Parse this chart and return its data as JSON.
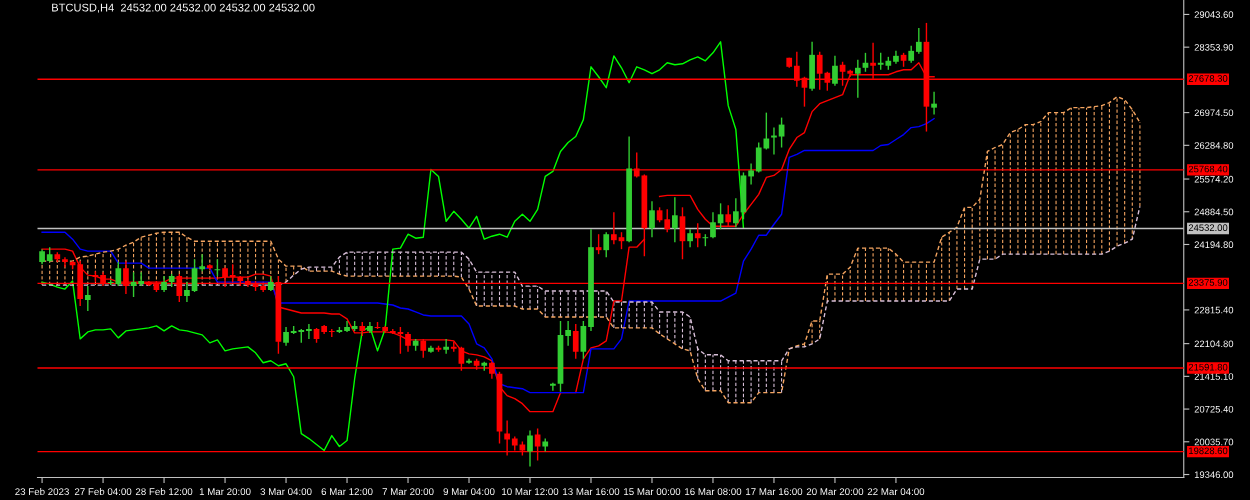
{
  "chart_data": {
    "type": "candlestick",
    "title": "BTCUSD,H4  24532.00 24532.00 24532.00 24532.00",
    "categories": [
      "23 Feb 2023",
      null,
      null,
      null,
      null,
      null,
      null,
      null,
      "27 Feb 04:00",
      null,
      null,
      null,
      null,
      null,
      null,
      null,
      "28 Feb 12:00",
      null,
      null,
      null,
      null,
      null,
      null,
      null,
      "1 Mar 20:00",
      null,
      null,
      null,
      null,
      null,
      null,
      null,
      "3 Mar 04:00",
      null,
      null,
      null,
      null,
      null,
      null,
      null,
      "6 Mar 12:00",
      null,
      null,
      null,
      null,
      null,
      null,
      null,
      "7 Mar 20:00",
      null,
      null,
      null,
      null,
      null,
      null,
      null,
      "9 Mar 04:00",
      null,
      null,
      null,
      null,
      null,
      null,
      null,
      "10 Mar 12:00",
      null,
      null,
      null,
      null,
      null,
      null,
      null,
      "13 Mar 16:00",
      null,
      null,
      null,
      null,
      null,
      null,
      null,
      "15 Mar 00:00",
      null,
      null,
      null,
      null,
      null,
      null,
      null,
      "16 Mar 08:00",
      null,
      null,
      null,
      null,
      null,
      null,
      null,
      "17 Mar 16:00",
      null,
      null,
      null,
      null,
      null,
      null,
      null,
      "20 Mar 20:00",
      null,
      null,
      null,
      null,
      null,
      null,
      null,
      "22 Mar 04:00",
      null,
      null,
      null,
      null,
      null,
      null,
      null,
      null,
      null,
      null,
      null,
      null,
      null,
      null,
      null,
      null,
      null,
      null,
      null,
      null,
      null,
      null,
      null,
      null,
      null,
      null,
      null,
      null,
      null,
      null,
      null,
      null
    ],
    "ohlc": [
      [
        23823,
        24096,
        23780,
        24054
      ],
      [
        23844,
        24138,
        23823,
        23991
      ],
      [
        23991,
        24033,
        23823,
        23886
      ],
      [
        23886,
        23928,
        23717,
        23823
      ],
      [
        23823,
        23844,
        23675,
        23759
      ],
      [
        23780,
        23844,
        22898,
        23045
      ],
      [
        23024,
        23318,
        22793,
        23129
      ],
      [
        23549,
        23633,
        23402,
        23507
      ],
      [
        23549,
        23612,
        23318,
        23360
      ],
      [
        23381,
        23444,
        23339,
        23402
      ],
      [
        23360,
        23823,
        23318,
        23696
      ],
      [
        23696,
        23844,
        23150,
        23318
      ],
      [
        23318,
        23612,
        23087,
        23402
      ],
      [
        23360,
        23612,
        23318,
        23423
      ],
      [
        23402,
        23423,
        23318,
        23339
      ],
      [
        23381,
        23423,
        23192,
        23234
      ],
      [
        23234,
        23528,
        23192,
        23402
      ],
      [
        23402,
        23570,
        23297,
        23528
      ],
      [
        23528,
        23570,
        22982,
        23108
      ],
      [
        23108,
        23402,
        22982,
        23234
      ],
      [
        23213,
        23886,
        23192,
        23696
      ],
      [
        23675,
        23991,
        23633,
        23738
      ],
      [
        23759,
        23780,
        23654,
        23696
      ],
      [
        23654,
        23886,
        23528,
        23675
      ],
      [
        23696,
        23717,
        23297,
        23507
      ],
      [
        23549,
        23780,
        23402,
        23507
      ],
      [
        23507,
        23528,
        23318,
        23423
      ],
      [
        23423,
        23465,
        23297,
        23339
      ],
      [
        23381,
        23423,
        23213,
        23297
      ],
      [
        23318,
        23360,
        23192,
        23234
      ],
      [
        23234,
        23528,
        23213,
        23402
      ],
      [
        23402,
        23528,
        21890,
        22142
      ],
      [
        22121,
        22457,
        22058,
        22352
      ],
      [
        22331,
        22478,
        22310,
        22373
      ],
      [
        22352,
        22415,
        22121,
        22394
      ],
      [
        22373,
        22520,
        22205,
        22415
      ],
      [
        22415,
        22436,
        22121,
        22205
      ],
      [
        22478,
        22499,
        22310,
        22352
      ],
      [
        22373,
        22415,
        22247,
        22352
      ],
      [
        22352,
        22457,
        22331,
        22394
      ],
      [
        22373,
        22583,
        22352,
        22457
      ],
      [
        22415,
        22583,
        22373,
        22478
      ],
      [
        22478,
        22562,
        22268,
        22373
      ],
      [
        22373,
        22562,
        22331,
        22478
      ],
      [
        22457,
        22562,
        22415,
        22436
      ],
      [
        22457,
        22478,
        22331,
        22373
      ],
      [
        22373,
        22415,
        22310,
        22331
      ],
      [
        22352,
        22457,
        21890,
        22310
      ],
      [
        22310,
        22352,
        21932,
        22058
      ],
      [
        22058,
        22205,
        21953,
        22163
      ],
      [
        22163,
        22205,
        21806,
        21953
      ],
      [
        21932,
        22058,
        21911,
        22016
      ],
      [
        22016,
        22058,
        21932,
        21974
      ],
      [
        21974,
        22205,
        21890,
        22037
      ],
      [
        22037,
        22142,
        21932,
        21995
      ],
      [
        22016,
        22037,
        21533,
        21680
      ],
      [
        21701,
        21785,
        21680,
        21743
      ],
      [
        21743,
        21785,
        21554,
        21638
      ],
      [
        21638,
        21722,
        21533,
        21701
      ],
      [
        21701,
        21722,
        21365,
        21470
      ],
      [
        21470,
        21512,
        19999,
        20251
      ],
      [
        20209,
        20482,
        19747,
        20083
      ],
      [
        20104,
        20146,
        19852,
        19957
      ],
      [
        19978,
        20041,
        19747,
        19852
      ],
      [
        19831,
        20272,
        19515,
        20167
      ],
      [
        20188,
        20314,
        19641,
        19936
      ],
      [
        19936,
        20104,
        19831,
        20041
      ],
      [
        21218,
        21280,
        21113,
        21259
      ],
      [
        21259,
        22583,
        21092,
        22289
      ],
      [
        22268,
        22583,
        22058,
        22394
      ],
      [
        22373,
        22520,
        21785,
        21932
      ],
      [
        21932,
        22583,
        21785,
        22478
      ],
      [
        22457,
        24516,
        22373,
        24138
      ],
      [
        24138,
        24411,
        23991,
        24075
      ],
      [
        24075,
        24453,
        23928,
        24411
      ],
      [
        24411,
        24873,
        24201,
        24285
      ],
      [
        24348,
        24453,
        24096,
        24264
      ],
      [
        24264,
        26470,
        24243,
        25797
      ],
      [
        25797,
        26134,
        25608,
        25629
      ],
      [
        25650,
        25671,
        23949,
        24537
      ],
      [
        24537,
        25104,
        24348,
        24915
      ],
      [
        24915,
        24978,
        24663,
        24705
      ],
      [
        24726,
        24936,
        24453,
        24516
      ],
      [
        24537,
        25188,
        24243,
        24810
      ],
      [
        24789,
        24978,
        23886,
        24264
      ],
      [
        24264,
        24516,
        24138,
        24432
      ],
      [
        24432,
        24642,
        24138,
        24327
      ],
      [
        24327,
        24411,
        24159,
        24348
      ],
      [
        24348,
        24873,
        24327,
        24663
      ],
      [
        24642,
        25062,
        24516,
        24831
      ],
      [
        24831,
        25020,
        24579,
        24663
      ],
      [
        24642,
        25167,
        24558,
        24894
      ],
      [
        24873,
        25713,
        24726,
        25650
      ],
      [
        25629,
        25903,
        25461,
        25755
      ],
      [
        25734,
        26343,
        25713,
        26239
      ],
      [
        26218,
        26974,
        26197,
        26428
      ],
      [
        26449,
        26659,
        26092,
        26491
      ],
      [
        26470,
        26869,
        26239,
        26722
      ],
      [
        28130,
        28130,
        27919,
        27940
      ],
      [
        27962,
        28255,
        27520,
        27646
      ],
      [
        27709,
        27730,
        27100,
        27499
      ],
      [
        27478,
        28466,
        27436,
        28192
      ],
      [
        28192,
        28255,
        27457,
        27794
      ],
      [
        27815,
        27835,
        27436,
        27604
      ],
      [
        27583,
        28171,
        27541,
        27962
      ],
      [
        27983,
        28046,
        27541,
        27835
      ],
      [
        27856,
        27877,
        27730,
        27794
      ],
      [
        27794,
        28088,
        27289,
        27919
      ],
      [
        27919,
        28234,
        27835,
        28025
      ],
      [
        28025,
        28445,
        27688,
        27962
      ],
      [
        27983,
        28234,
        27877,
        28025
      ],
      [
        27962,
        28150,
        27877,
        28067
      ],
      [
        28046,
        28276,
        28004,
        28171
      ],
      [
        28192,
        28234,
        27940,
        28067
      ],
      [
        28067,
        28382,
        28025,
        28276
      ],
      [
        28255,
        28760,
        28213,
        28466
      ],
      [
        28466,
        28865,
        26575,
        27100
      ],
      [
        27079,
        27415,
        26932,
        27163
      ],
      null,
      null,
      null,
      null,
      null,
      null,
      null,
      null,
      null,
      null,
      null,
      null,
      null,
      null,
      null,
      null,
      null,
      null,
      null,
      null,
      null,
      null,
      null,
      null,
      null,
      null,
      null
    ],
    "colors": [
      "#32cd32",
      "#32cd32",
      "#ff0000",
      "#ff0000",
      "#ff0000",
      "#ff0000",
      "#32cd32",
      "#ff0000",
      "#ff0000",
      "#32cd32",
      "#32cd32",
      "#ff0000",
      "#32cd32",
      "#32cd32",
      "#ff0000",
      "#ff0000",
      "#32cd32",
      "#32cd32",
      "#ff0000",
      "#32cd32",
      "#32cd32",
      "#32cd32",
      "#ff0000",
      "#32cd32",
      "#ff0000",
      "#ff0000",
      "#ff0000",
      "#ff0000",
      "#ff0000",
      "#ff0000",
      "#32cd32",
      "#ff0000",
      "#32cd32",
      "#32cd32",
      "#32cd32",
      "#32cd32",
      "#ff0000",
      "#ff0000",
      "#ff0000",
      "#32cd32",
      "#32cd32",
      "#32cd32",
      "#ff0000",
      "#32cd32",
      "#ff0000",
      "#ff0000",
      "#ff0000",
      "#ff0000",
      "#ff0000",
      "#32cd32",
      "#ff0000",
      "#32cd32",
      "#ff0000",
      "#32cd32",
      "#ff0000",
      "#ff0000",
      "#32cd32",
      "#ff0000",
      "#32cd32",
      "#ff0000",
      "#ff0000",
      "#ff0000",
      "#ff0000",
      "#ff0000",
      "#32cd32",
      "#ff0000",
      "#32cd32",
      "#32cd32",
      "#32cd32",
      "#32cd32",
      "#ff0000",
      "#32cd32",
      "#32cd32",
      "#ff0000",
      "#32cd32",
      "#ff0000",
      "#ff0000",
      "#32cd32",
      "#ff0000",
      "#ff0000",
      "#32cd32",
      "#ff0000",
      "#ff0000",
      "#32cd32",
      "#ff0000",
      "#32cd32",
      "#ff0000",
      "#32cd32",
      "#32cd32",
      "#32cd32",
      "#ff0000",
      "#32cd32",
      "#32cd32",
      "#32cd32",
      "#32cd32",
      "#32cd32",
      "#32cd32",
      "#32cd32",
      "#ff0000",
      "#ff0000",
      "#ff0000",
      "#32cd32",
      "#ff0000",
      "#ff0000",
      "#32cd32",
      "#ff0000",
      "#ff0000",
      "#32cd32",
      "#32cd32",
      "#ff0000",
      "#32cd32",
      "#32cd32",
      "#32cd32",
      "#ff0000",
      "#32cd32",
      "#32cd32",
      "#ff0000",
      "#32cd32",
      null,
      null,
      null,
      null,
      null,
      null,
      null,
      null,
      null,
      null,
      null,
      null,
      null,
      null,
      null,
      null,
      null,
      null,
      null,
      null,
      null,
      null,
      null,
      null,
      null,
      null,
      null
    ],
    "series": [
      {
        "type": "line",
        "color": "#ff0000",
        "values": [
          24096,
          24096,
          24096,
          24096,
          24054,
          23717,
          23549,
          23528,
          23465,
          23465,
          23402,
          23402,
          23402,
          23402,
          23402,
          23402,
          23402,
          23486,
          23486,
          23486,
          23486,
          23486,
          23486,
          23486,
          23507,
          23507,
          23507,
          23507,
          23570,
          23570,
          23528,
          22877,
          22835,
          22793,
          22751,
          22751,
          22751,
          22751,
          22730,
          22730,
          22625,
          22331,
          22331,
          22352,
          22352,
          22352,
          22331,
          22268,
          22184,
          22184,
          22184,
          22184,
          22184,
          22184,
          22163,
          21953,
          21890,
          21869,
          21827,
          21743,
          21197,
          21008,
          20944,
          20839,
          20671,
          20671,
          20671,
          20671,
          21071,
          21071,
          21071,
          21785,
          22016,
          22058,
          22163,
          23003,
          23003,
          24138,
          24138,
          24306,
          null,
          25209,
          25230,
          25230,
          25230,
          25230,
          24936,
          24726,
          24579,
          24579,
          24579,
          24579,
          24831,
          25041,
          25251,
          25608,
          25650,
          25776,
          26197,
          26449,
          26554,
          26995,
          27163,
          27226,
          27289,
          27352,
          27772,
          27772,
          27772,
          27772,
          27772,
          27772,
          27835,
          27877,
          27877,
          28025,
          27730,
          27730,
          null,
          null,
          null,
          null,
          null,
          null,
          null,
          null,
          null,
          null,
          null,
          null,
          null,
          null,
          null,
          null,
          null,
          null,
          null,
          null,
          null,
          null,
          null,
          null,
          null,
          null,
          null
        ]
      },
      {
        "type": "line",
        "color": "#0000ff",
        "values": [
          24453,
          24453,
          24453,
          24453,
          24306,
          24096,
          24054,
          24054,
          24054,
          24054,
          23802,
          23802,
          23802,
          23802,
          23696,
          23696,
          23696,
          23696,
          23696,
          23696,
          23696,
          23696,
          23696,
          23402,
          23402,
          23402,
          23402,
          23402,
          23402,
          23402,
          23402,
          22961,
          22961,
          22961,
          22961,
          22961,
          22961,
          22961,
          22961,
          22961,
          22961,
          22961,
          22961,
          22961,
          22961,
          22940,
          22919,
          22856,
          22835,
          22772,
          22709,
          22688,
          22688,
          22688,
          22688,
          22688,
          22520,
          22100,
          22016,
          21785,
          21259,
          21197,
          21176,
          21155,
          21071,
          21071,
          21071,
          21071,
          21071,
          21071,
          21071,
          21071,
          21995,
          21995,
          21995,
          21995,
          22205,
          23003,
          23003,
          23003,
          23003,
          23003,
          23003,
          23003,
          23003,
          23003,
          23003,
          23003,
          23003,
          23003,
          23087,
          23171,
          23844,
          24096,
          24390,
          24390,
          24621,
          24831,
          26029,
          26092,
          26176,
          26176,
          26176,
          26176,
          26176,
          26176,
          26176,
          26176,
          26176,
          26176,
          26281,
          26302,
          26407,
          26512,
          26659,
          26680,
          26743,
          26848,
          null,
          null,
          null,
          null,
          null,
          null,
          null,
          null,
          null,
          null,
          null,
          null,
          null,
          null,
          null,
          null,
          null,
          null,
          null,
          null,
          null,
          null,
          null,
          null,
          null,
          null,
          null
        ]
      },
      {
        "type": "line",
        "color": "#00ff00",
        "values": [
          23402,
          23360,
          23297,
          23255,
          23423,
          22205,
          22352,
          22394,
          22394,
          22415,
          22226,
          22373,
          22394,
          22415,
          22436,
          22478,
          22373,
          22478,
          22394,
          22373,
          22331,
          22289,
          22121,
          22184,
          21953,
          21995,
          22016,
          22037,
          21911,
          21701,
          21743,
          21638,
          21680,
          21407,
          20209,
          20104,
          19978,
          19852,
          20167,
          19936,
          20062,
          21365,
          22373,
          22457,
          21953,
          22415,
          24096,
          24117,
          24411,
          24327,
          24348,
          25776,
          25629,
          24684,
          24894,
          24726,
          24537,
          24789,
          24306,
          24369,
          24411,
          24348,
          24684,
          24831,
          24684,
          24936,
          25629,
          25734,
          26155,
          26343,
          26470,
          26827,
          27940,
          27730,
          27499,
          28171,
          27919,
          27604,
          27940,
          27877,
          27794,
          27877,
          28025,
          27983,
          28004,
          28088,
          28150,
          28067,
          28234,
          28466,
          27121,
          26617,
          24537,
          null,
          null,
          null,
          null,
          null,
          null,
          null,
          null,
          null,
          null,
          null,
          null,
          null,
          null,
          null,
          null,
          null,
          null,
          null,
          null,
          null,
          null,
          null,
          null,
          null,
          null,
          null,
          null,
          null,
          null,
          null,
          null,
          null,
          null,
          null,
          null,
          null,
          null,
          null,
          null,
          null,
          null,
          null,
          null,
          null,
          null,
          null,
          null,
          null,
          null,
          null,
          null
        ]
      },
      {
        "type": "line",
        "color": "#f4a460",
        "line_style": "dashed",
        "values": [
          23844,
          23844,
          23844,
          23844,
          23844,
          23928,
          23949,
          23991,
          24033,
          24054,
          24096,
          24180,
          24243,
          24348,
          24390,
          24432,
          24453,
          24453,
          24453,
          24348,
          24264,
          24264,
          24264,
          24264,
          24264,
          24264,
          24264,
          24264,
          24264,
          24264,
          24264,
          23886,
          23738,
          23738,
          23738,
          23633,
          23633,
          23633,
          23633,
          23570,
          23528,
          23528,
          23528,
          23528,
          23528,
          23528,
          23528,
          23528,
          23528,
          23528,
          23528,
          23528,
          23528,
          23528,
          23528,
          23507,
          23255,
          22898,
          22898,
          22898,
          22898,
          22898,
          22898,
          22835,
          22835,
          22835,
          22667,
          22667,
          22667,
          22667,
          22667,
          22667,
          22667,
          22667,
          22667,
          22436,
          22436,
          22436,
          22436,
          22436,
          22436,
          22310,
          22205,
          22100,
          21995,
          21953,
          21365,
          21113,
          21113,
          21113,
          20860,
          20860,
          20860,
          20860,
          21071,
          21071,
          21071,
          21071,
          21995,
          22058,
          22100,
          22583,
          22583,
          23570,
          23570,
          23570,
          23717,
          24117,
          24117,
          24117,
          24117,
          24117,
          23991,
          23823,
          23823,
          23823,
          23823,
          23823,
          24348,
          24453,
          24558,
          24978,
          24978,
          25146,
          26155,
          26239,
          26302,
          26554,
          26617,
          26722,
          26722,
          26785,
          26974,
          26974,
          26974,
          27079,
          27079,
          27079,
          27100,
          27121,
          27184,
          27310,
          27247,
          27037,
          26764
        ]
      },
      {
        "type": "line",
        "color": "#d8bfd8",
        "line_style": "dashed",
        "values": [
          23339,
          23339,
          23339,
          23339,
          23339,
          23339,
          23339,
          23339,
          23339,
          23339,
          23339,
          23339,
          23339,
          23339,
          23339,
          23339,
          23339,
          23339,
          23339,
          23339,
          23339,
          23339,
          23339,
          23339,
          23339,
          23339,
          23339,
          23339,
          23339,
          23339,
          23339,
          23339,
          23402,
          23549,
          23675,
          23717,
          23717,
          23717,
          23717,
          23928,
          24033,
          24033,
          24033,
          24033,
          24033,
          24033,
          24033,
          24033,
          24033,
          24033,
          24033,
          24033,
          24033,
          24033,
          24033,
          24033,
          23886,
          23612,
          23612,
          23612,
          23612,
          23612,
          23612,
          23318,
          23318,
          23318,
          23213,
          23213,
          23213,
          23213,
          23213,
          23213,
          23213,
          23213,
          23213,
          22982,
          22982,
          22982,
          22982,
          22982,
          22982,
          22772,
          22772,
          22772,
          22772,
          22667,
          21995,
          21869,
          21869,
          21869,
          21743,
          21743,
          21743,
          21743,
          21743,
          21743,
          21743,
          21743,
          21995,
          22037,
          22037,
          22100,
          22205,
          23003,
          23003,
          23003,
          23003,
          23003,
          23003,
          23003,
          23003,
          23003,
          23003,
          23003,
          23003,
          23003,
          23003,
          23003,
          23003,
          23003,
          23255,
          23255,
          23255,
          23886,
          23886,
          23886,
          23991,
          23991,
          23991,
          23991,
          23991,
          23991,
          23991,
          23991,
          23991,
          23991,
          23991,
          23991,
          23991,
          23991,
          24054,
          24159,
          24222,
          24306,
          24999
        ]
      }
    ],
    "ylim": [
      19283,
      29348
    ],
    "yticks": [
      {
        "value": 29043.6,
        "label": "29043.60"
      },
      {
        "value": 28353.9,
        "label": "28353.90"
      },
      {
        "value": 26974.5,
        "label": "26974.50"
      },
      {
        "value": 26284.8,
        "label": "26284.80"
      },
      {
        "value": 25574.2,
        "label": "25574.20"
      },
      {
        "value": 24884.5,
        "label": "24884.50"
      },
      {
        "value": 24194.8,
        "label": "24194.80"
      },
      {
        "value": 22815.4,
        "label": "22815.40"
      },
      {
        "value": 22104.8,
        "label": "22104.80"
      },
      {
        "value": 21415.1,
        "label": "21415.10"
      },
      {
        "value": 20725.4,
        "label": "20725.40"
      },
      {
        "value": 20035.7,
        "label": "20035.70"
      },
      {
        "value": 19346,
        "label": "19346.00"
      }
    ],
    "ref_lines": [
      {
        "axis": "y",
        "value": 27678.3,
        "label": "27678.30",
        "color": "#ff0000"
      },
      {
        "axis": "y",
        "value": 25768.4,
        "label": "25768.40",
        "color": "#ff0000"
      },
      {
        "axis": "y",
        "value": 24532.0,
        "label": "24532.00",
        "color": "#c0c0c0"
      },
      {
        "axis": "y",
        "value": 23375.9,
        "label": "23375.90",
        "color": "#ff0000"
      },
      {
        "axis": "y",
        "value": 21591.8,
        "label": "21591.80",
        "color": "#ff0000"
      },
      {
        "axis": "y",
        "value": 19828.6,
        "label": "19828.60",
        "color": "#ff0000"
      }
    ],
    "grid": false,
    "legend": false
  }
}
